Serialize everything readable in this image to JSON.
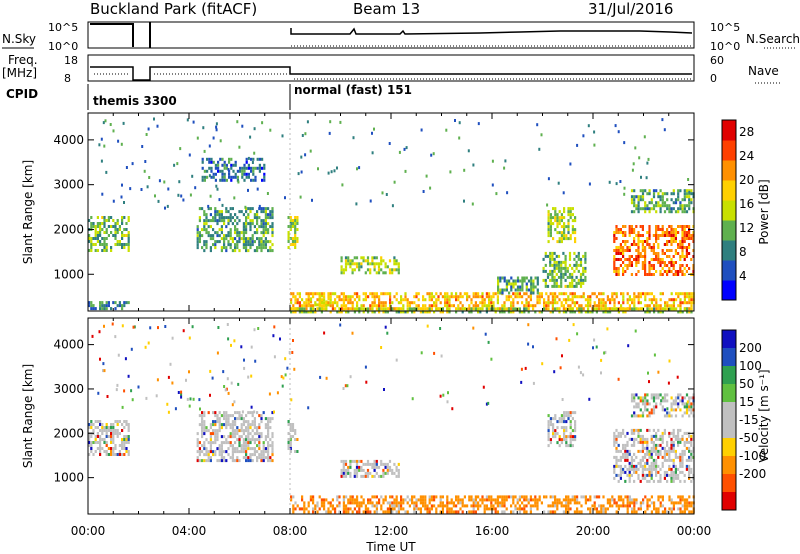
{
  "header": {
    "title": "Buckland Park (fitACF)",
    "beam": "Beam 13",
    "date": "31/Jul/2016"
  },
  "status": {
    "nsky_label": "N.Sky",
    "nsearch_label": "N.Search",
    "freq_label_1": "Freq.",
    "freq_label_2": "[MHz]",
    "nave_label": "Nave",
    "cpid_label": "CPID",
    "nsky_ticks": [
      "10^5",
      "10^0"
    ],
    "nsearch_ticks": [
      "10^5",
      "10^0"
    ],
    "freq_ticks": [
      "18",
      "8"
    ],
    "nave_ticks": [
      "60",
      "0"
    ],
    "cpid_modes": [
      {
        "label": "themis 3300",
        "start_hour": 0
      },
      {
        "label": "normal (fast) 151",
        "start_hour": 8
      }
    ]
  },
  "chart_data": [
    {
      "type": "heatmap",
      "title": "Power",
      "ylabel": "Slant Range [km]",
      "xlabel": "",
      "xlim": [
        0,
        24
      ],
      "ylim": [
        180,
        4600
      ],
      "yticks": [
        "1000",
        "2000",
        "3000",
        "4000"
      ],
      "ytick_values": [
        1000,
        2000,
        3000,
        4000
      ],
      "colorbar_label": "Power [dB]",
      "colorbar_ticks": [
        "28",
        "24",
        "20",
        "16",
        "12",
        "8",
        "4"
      ],
      "colorbar_values": [
        28,
        24,
        20,
        16,
        12,
        8,
        4
      ],
      "colorbar_range": [
        0,
        30
      ],
      "colors": [
        "#0000ff",
        "#1f4fbf",
        "#2f7f7f",
        "#5fb04f",
        "#c8e000",
        "#ffd000",
        "#ff9000",
        "#ff4000",
        "#e00000"
      ],
      "regions": [
        {
          "x": [
            0.0,
            1.6
          ],
          "y": [
            1500,
            2300
          ],
          "level": 12
        },
        {
          "x": [
            0.0,
            1.6
          ],
          "y": [
            200,
            400
          ],
          "level": 8
        },
        {
          "x": [
            4.3,
            7.3
          ],
          "y": [
            1500,
            2500
          ],
          "level": 10
        },
        {
          "x": [
            4.5,
            7.0
          ],
          "y": [
            3100,
            3600
          ],
          "level": 6
        },
        {
          "x": [
            7.9,
            8.3
          ],
          "y": [
            1600,
            2300
          ],
          "level": 14
        },
        {
          "x": [
            8.7,
            9.5
          ],
          "y": [
            300,
            550
          ],
          "level": 18
        },
        {
          "x": [
            10.0,
            12.3
          ],
          "y": [
            1000,
            1400
          ],
          "level": 14
        },
        {
          "x": [
            8.0,
            24.0
          ],
          "y": [
            200,
            600
          ],
          "level": 20
        },
        {
          "x": [
            16.2,
            17.8
          ],
          "y": [
            550,
            950
          ],
          "level": 10
        },
        {
          "x": [
            18.2,
            19.3
          ],
          "y": [
            1700,
            2500
          ],
          "level": 14
        },
        {
          "x": [
            18.0,
            19.7
          ],
          "y": [
            700,
            1500
          ],
          "level": 12
        },
        {
          "x": [
            20.8,
            24.0
          ],
          "y": [
            1000,
            2100
          ],
          "level": 24
        },
        {
          "x": [
            21.5,
            24.0
          ],
          "y": [
            2400,
            2900
          ],
          "level": 10
        },
        {
          "x": [
            8.0,
            24.0
          ],
          "y": [
            190,
            260
          ],
          "level": 14
        }
      ]
    },
    {
      "type": "heatmap",
      "title": "Velocity",
      "ylabel": "Slant Range [km]",
      "xlabel": "Time UT",
      "xlim": [
        0,
        24
      ],
      "ylim": [
        180,
        4600
      ],
      "xticks": [
        "00:00",
        "04:00",
        "08:00",
        "12:00",
        "16:00",
        "20:00",
        "00:00"
      ],
      "xtick_values": [
        0,
        4,
        8,
        12,
        16,
        20,
        24
      ],
      "yticks": [
        "1000",
        "2000",
        "3000",
        "4000"
      ],
      "ytick_values": [
        1000,
        2000,
        3000,
        4000
      ],
      "colorbar_label": "Velocity [m s⁻¹]",
      "colorbar_ticks": [
        "200",
        "100",
        "50",
        "15",
        "-15",
        "-50",
        "-100",
        "-200"
      ],
      "colors": [
        "#e00000",
        "#ff5000",
        "#ff9000",
        "#ffd000",
        "#c0c0c0",
        "#c0c0c0",
        "#60c040",
        "#2fa050",
        "#1f4fbf",
        "#1010c0"
      ],
      "regions": [
        {
          "x": [
            0.0,
            1.6
          ],
          "y": [
            1500,
            2300
          ],
          "level": 0
        },
        {
          "x": [
            4.3,
            7.3
          ],
          "y": [
            1400,
            2500
          ],
          "level": 0
        },
        {
          "x": [
            7.9,
            8.3
          ],
          "y": [
            1600,
            2300
          ],
          "level": 0
        },
        {
          "x": [
            10.0,
            12.3
          ],
          "y": [
            1000,
            1400
          ],
          "level": 0
        },
        {
          "x": [
            8.0,
            24.0
          ],
          "y": [
            200,
            600
          ],
          "level": -50
        },
        {
          "x": [
            20.8,
            24.0
          ],
          "y": [
            900,
            2100
          ],
          "level": 0
        },
        {
          "x": [
            21.5,
            24.0
          ],
          "y": [
            2400,
            2900
          ],
          "level": 50
        },
        {
          "x": [
            18.2,
            19.3
          ],
          "y": [
            1700,
            2500
          ],
          "level": 0
        }
      ]
    }
  ]
}
